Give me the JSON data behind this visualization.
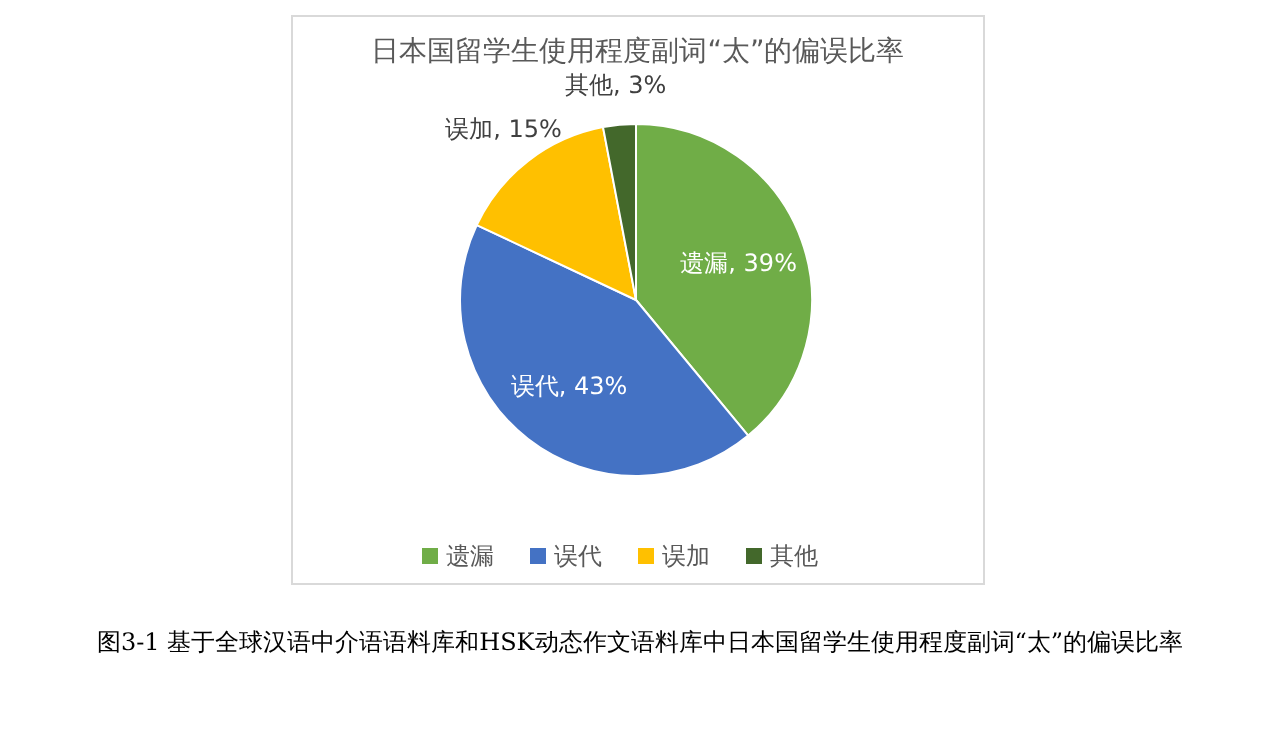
{
  "chart_data": {
    "type": "pie",
    "title": "日本国留学生使用程度副词“太”的偏误比率",
    "categories": [
      "遗漏",
      "误代",
      "误加",
      "其他"
    ],
    "values": [
      39,
      43,
      15,
      3
    ],
    "colors": [
      "#70ad47",
      "#4472c4",
      "#ffc000",
      "#43682b"
    ],
    "value_labels": [
      "遗漏, 39%",
      "误代, 43%",
      "误加, 15%",
      "其他, 3%"
    ],
    "legend": "bottom",
    "annotations": [
      "图3-1 基于全球汉语中介语语料库和HSK动态作文语料库中日本国留学生使用程度副词“太”的偏误比率"
    ]
  }
}
